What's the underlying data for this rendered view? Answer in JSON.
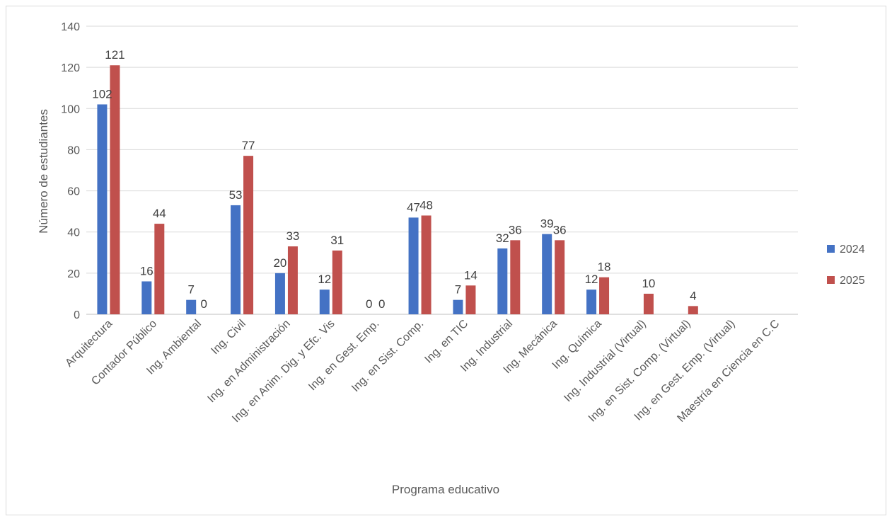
{
  "chart_data": {
    "type": "bar",
    "xlabel": "Programa educativo",
    "ylabel": "Número  de  estudiantes",
    "ylim": [
      0,
      140
    ],
    "yticks": [
      0,
      20,
      40,
      60,
      80,
      100,
      120,
      140
    ],
    "grid": true,
    "legend_position": "right",
    "categories": [
      "Arquitectura",
      "Contador Público",
      "Ing. Ambiental",
      "Ing. Civil",
      "Ing. en Administración",
      "Ing. en Anim. Dig. y Efc. Vis",
      "Ing. en Gest. Emp.",
      "Ing. en Sist. Comp.",
      "Ing. en TIC",
      "Ing. Industrial",
      "Ing. Mecánica",
      "Ing. Química",
      "Ing. Industrial (Virtual)",
      "Ing. en Sist. Comp. (Virtual)",
      "Ing. en Gest. Emp. (Virtual)",
      "Maestría en Ciencia en C.C"
    ],
    "series": [
      {
        "name": "2024",
        "color": "#4472c4",
        "values": [
          102,
          16,
          7,
          53,
          20,
          12,
          0,
          47,
          7,
          32,
          39,
          12,
          null,
          null,
          null,
          null
        ],
        "labels": [
          "102",
          "16",
          "7",
          "53",
          "20",
          "12",
          "0",
          "47",
          "7",
          "32",
          "39",
          "12",
          "",
          "",
          "",
          ""
        ]
      },
      {
        "name": "2025",
        "color": "#c0504d",
        "values": [
          121,
          44,
          0,
          77,
          33,
          31,
          0,
          48,
          14,
          36,
          36,
          18,
          10,
          4,
          null,
          null
        ],
        "labels": [
          "121",
          "44",
          "0",
          "77",
          "33",
          "31",
          "0",
          "48",
          "14",
          "36",
          "36",
          "18",
          "10",
          "4",
          "",
          ""
        ]
      }
    ]
  }
}
